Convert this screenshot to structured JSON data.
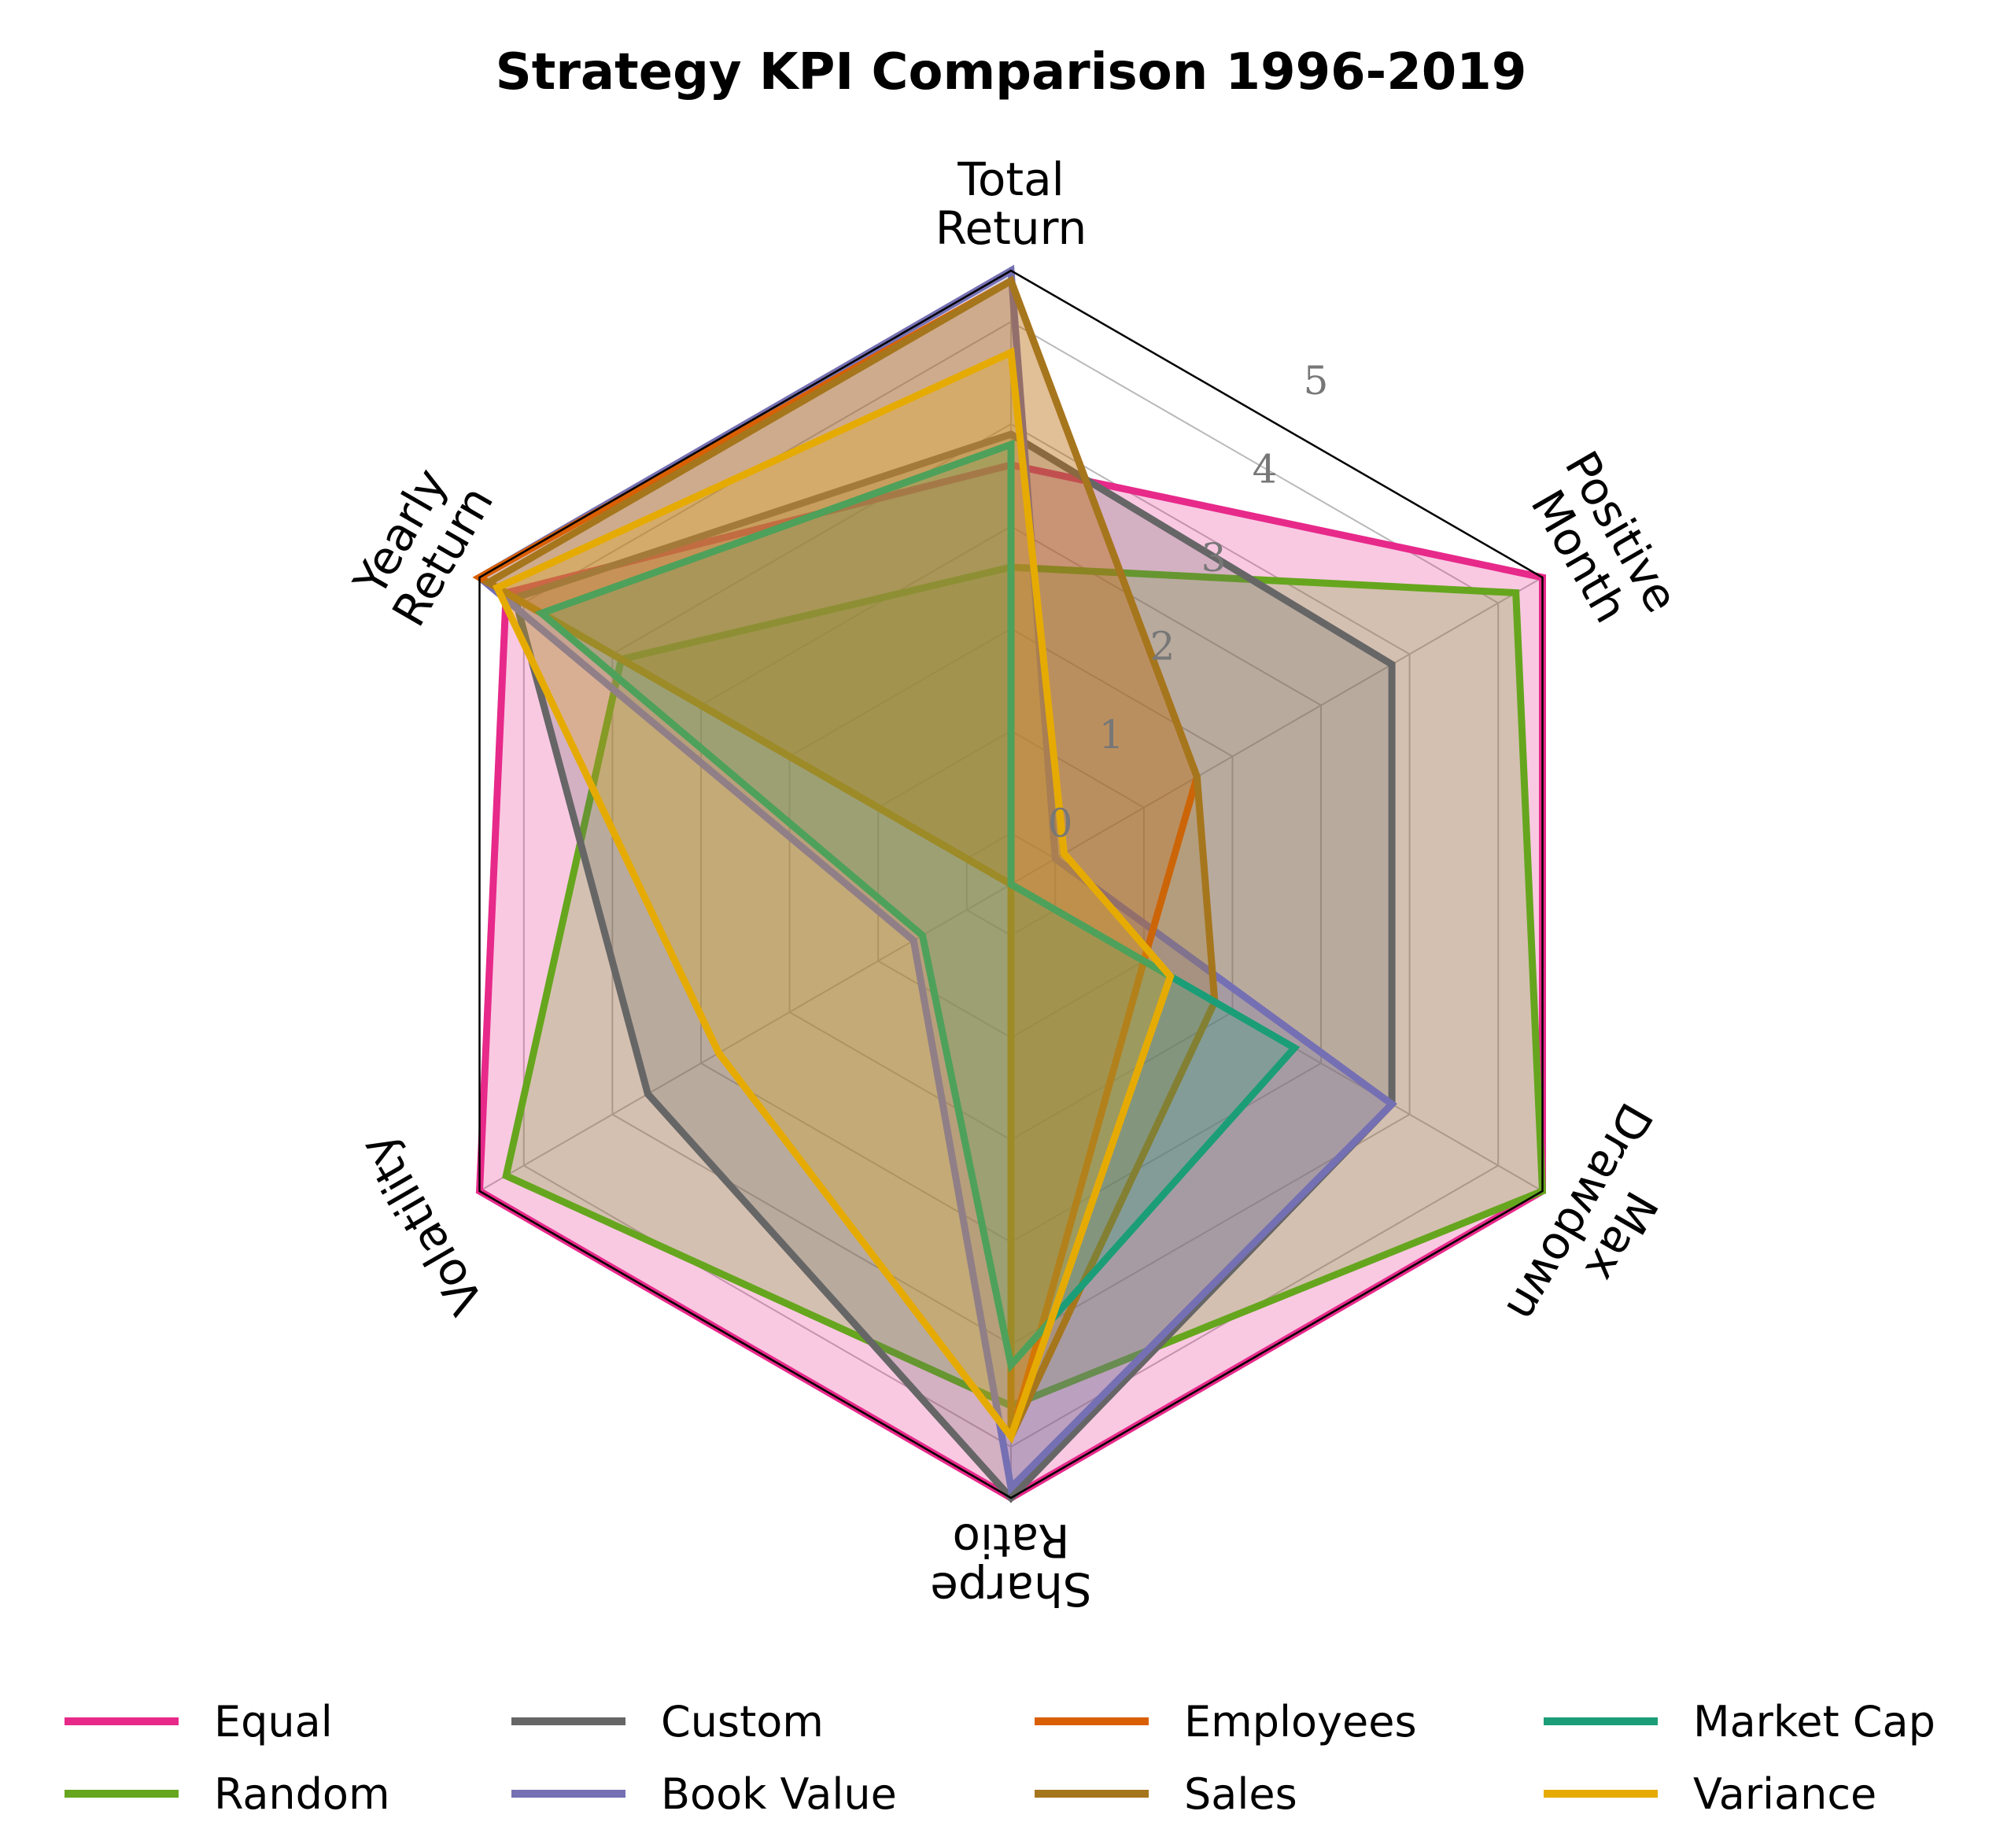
{
  "chart_data": {
    "type": "radar",
    "title": "Strategy KPI Comparison 1996-2019",
    "axes": [
      [
        "Total",
        "Return"
      ],
      [
        "Positive",
        "Month"
      ],
      [
        "Max",
        "Drawdown"
      ],
      [
        "Sharpe",
        "Ratio"
      ],
      [
        "Volatility"
      ],
      [
        "Yearly",
        "Return"
      ]
    ],
    "radial_ticks": [
      "0",
      "1",
      "2",
      "3",
      "4",
      "5"
    ],
    "rlim": [
      -0.5,
      5.5
    ],
    "series": [
      {
        "name": "Equal",
        "color": "#e7298a",
        "values": [
          3.6,
          5.5,
          5.5,
          5.5,
          5.5,
          5.2
        ]
      },
      {
        "name": "Random",
        "color": "#66a61e",
        "values": [
          2.6,
          5.2,
          5.5,
          4.6,
          5.2,
          3.9
        ]
      },
      {
        "name": "Custom",
        "color": "#666666",
        "values": [
          3.9,
          3.8,
          3.8,
          5.5,
          3.6,
          5.1
        ]
      },
      {
        "name": "Book Value",
        "color": "#7570b3",
        "values": [
          5.5,
          0.0,
          3.8,
          5.4,
          0.6,
          5.5
        ]
      },
      {
        "name": "Employees",
        "color": "#d95f02",
        "values": [
          5.4,
          1.6,
          1.0,
          4.9,
          -0.5,
          5.5
        ]
      },
      {
        "name": "Sales",
        "color": "#a6761d",
        "values": [
          5.4,
          1.6,
          1.8,
          4.9,
          -0.5,
          5.4
        ]
      },
      {
        "name": "Market Cap",
        "color": "#1b9e77",
        "values": [
          3.8,
          -0.5,
          2.7,
          4.2,
          0.5,
          4.8
        ]
      },
      {
        "name": "Variance",
        "color": "#e6ab02",
        "values": [
          4.7,
          0.1,
          1.3,
          4.9,
          2.8,
          5.3
        ]
      }
    ],
    "legend_position": "bottom",
    "grid": true
  }
}
